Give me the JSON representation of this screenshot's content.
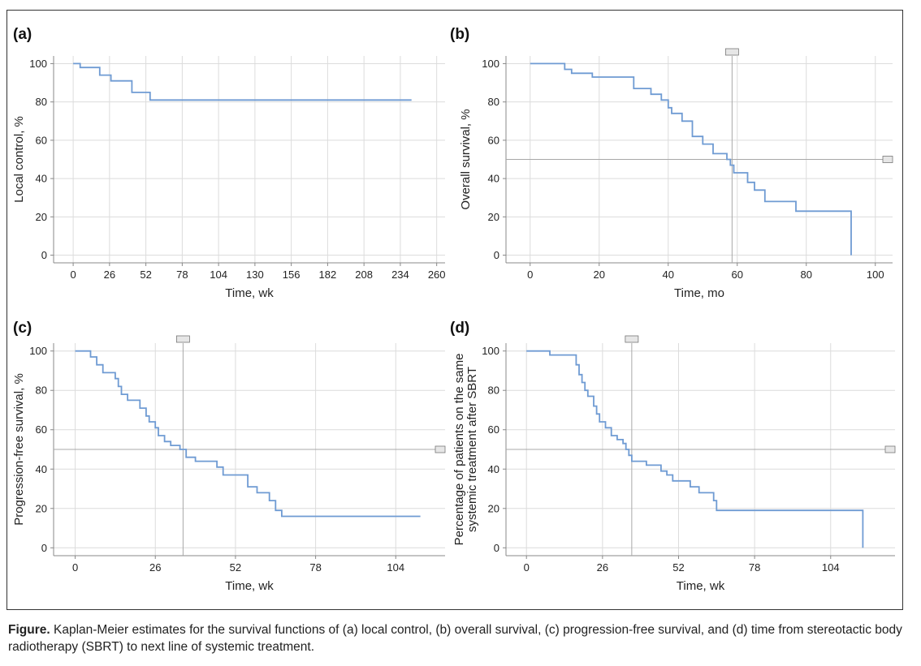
{
  "caption": {
    "label": "Figure.",
    "text": "Kaplan-Meier estimates for the survival functions of (a) local control, (b) overall survival, (c) progression-free survival, and (d) time from stereotactic body radiotherapy (SBRT) to next line of systemic treatment."
  },
  "chart_data": [
    {
      "panel": "(a)",
      "type": "line",
      "step": true,
      "xlabel": "Time, wk",
      "ylabel": [
        "Local control, %"
      ],
      "xlim": [
        -14,
        266
      ],
      "ylim": [
        -4,
        104
      ],
      "xticks": [
        0,
        26,
        52,
        78,
        104,
        130,
        156,
        182,
        208,
        234,
        260
      ],
      "yticks": [
        0,
        20,
        40,
        60,
        80,
        100
      ],
      "grid": true,
      "median_line": null,
      "points": [
        [
          0,
          100
        ],
        [
          5,
          100
        ],
        [
          5,
          98
        ],
        [
          19,
          98
        ],
        [
          19,
          94
        ],
        [
          27,
          94
        ],
        [
          27,
          91
        ],
        [
          42,
          91
        ],
        [
          42,
          85
        ],
        [
          55,
          85
        ],
        [
          55,
          81
        ],
        [
          242,
          81
        ]
      ]
    },
    {
      "panel": "(b)",
      "type": "line",
      "step": true,
      "xlabel": "Time, mo",
      "ylabel": [
        "Overall survival, %"
      ],
      "xlim": [
        -7,
        105
      ],
      "ylim": [
        -4,
        104
      ],
      "xticks": [
        0,
        20,
        40,
        60,
        80,
        100
      ],
      "yticks": [
        0,
        20,
        40,
        60,
        80,
        100
      ],
      "grid": true,
      "median_line": {
        "x": 58.5,
        "y": 50
      },
      "points": [
        [
          0,
          100
        ],
        [
          10,
          100
        ],
        [
          10,
          97
        ],
        [
          12,
          97
        ],
        [
          12,
          95
        ],
        [
          18,
          95
        ],
        [
          18,
          93
        ],
        [
          30,
          93
        ],
        [
          30,
          87
        ],
        [
          35,
          87
        ],
        [
          35,
          84
        ],
        [
          38,
          84
        ],
        [
          38,
          81
        ],
        [
          40,
          81
        ],
        [
          40,
          77
        ],
        [
          41,
          77
        ],
        [
          41,
          74
        ],
        [
          44,
          74
        ],
        [
          44,
          70
        ],
        [
          47,
          70
        ],
        [
          47,
          62
        ],
        [
          50,
          62
        ],
        [
          50,
          58
        ],
        [
          53,
          58
        ],
        [
          53,
          53
        ],
        [
          57,
          53
        ],
        [
          57,
          50
        ],
        [
          58,
          50
        ],
        [
          58,
          47
        ],
        [
          59,
          47
        ],
        [
          59,
          43
        ],
        [
          63,
          43
        ],
        [
          63,
          38
        ],
        [
          65,
          38
        ],
        [
          65,
          34
        ],
        [
          68,
          34
        ],
        [
          68,
          28
        ],
        [
          77,
          28
        ],
        [
          77,
          23
        ],
        [
          93,
          23
        ],
        [
          93,
          0
        ]
      ]
    },
    {
      "panel": "(c)",
      "type": "line",
      "step": true,
      "xlabel": "Time, wk",
      "ylabel": [
        "Progression-free survival, %"
      ],
      "xlim": [
        -7,
        120
      ],
      "ylim": [
        -4,
        104
      ],
      "xticks": [
        0,
        26,
        52,
        78,
        104
      ],
      "yticks": [
        0,
        20,
        40,
        60,
        80,
        100
      ],
      "grid": true,
      "median_line": {
        "x": 35,
        "y": 50
      },
      "points": [
        [
          0,
          100
        ],
        [
          5,
          100
        ],
        [
          5,
          97
        ],
        [
          7,
          97
        ],
        [
          7,
          93
        ],
        [
          9,
          93
        ],
        [
          9,
          89
        ],
        [
          13,
          89
        ],
        [
          13,
          86
        ],
        [
          14,
          86
        ],
        [
          14,
          82
        ],
        [
          15,
          82
        ],
        [
          15,
          78
        ],
        [
          17,
          78
        ],
        [
          17,
          75
        ],
        [
          21,
          75
        ],
        [
          21,
          71
        ],
        [
          23,
          71
        ],
        [
          23,
          67
        ],
        [
          24,
          67
        ],
        [
          24,
          64
        ],
        [
          26,
          64
        ],
        [
          26,
          61
        ],
        [
          27,
          61
        ],
        [
          27,
          57
        ],
        [
          29,
          57
        ],
        [
          29,
          54
        ],
        [
          31,
          54
        ],
        [
          31,
          52
        ],
        [
          34,
          52
        ],
        [
          34,
          50
        ],
        [
          36,
          50
        ],
        [
          36,
          46
        ],
        [
          39,
          46
        ],
        [
          39,
          44
        ],
        [
          46,
          44
        ],
        [
          46,
          41
        ],
        [
          48,
          41
        ],
        [
          48,
          37
        ],
        [
          56,
          37
        ],
        [
          56,
          31
        ],
        [
          59,
          31
        ],
        [
          59,
          28
        ],
        [
          63,
          28
        ],
        [
          63,
          24
        ],
        [
          65,
          24
        ],
        [
          65,
          19
        ],
        [
          67,
          19
        ],
        [
          67,
          16
        ],
        [
          112,
          16
        ]
      ]
    },
    {
      "panel": "(d)",
      "type": "line",
      "step": true,
      "xlabel": "Time, wk",
      "ylabel": [
        "Percentage of patients on the same",
        "systemic treatment after SBRT"
      ],
      "xlim": [
        -7,
        126
      ],
      "ylim": [
        -4,
        104
      ],
      "xticks": [
        0,
        26,
        52,
        78,
        104
      ],
      "yticks": [
        0,
        20,
        40,
        60,
        80,
        100
      ],
      "grid": true,
      "median_line": {
        "x": 36,
        "y": 50
      },
      "points": [
        [
          0,
          100
        ],
        [
          8,
          100
        ],
        [
          8,
          98
        ],
        [
          17,
          98
        ],
        [
          17,
          93
        ],
        [
          18,
          93
        ],
        [
          18,
          88
        ],
        [
          19,
          88
        ],
        [
          19,
          84
        ],
        [
          20,
          84
        ],
        [
          20,
          80
        ],
        [
          21,
          80
        ],
        [
          21,
          77
        ],
        [
          23,
          77
        ],
        [
          23,
          72
        ],
        [
          24,
          72
        ],
        [
          24,
          68
        ],
        [
          25,
          68
        ],
        [
          25,
          64
        ],
        [
          27,
          64
        ],
        [
          27,
          61
        ],
        [
          29,
          61
        ],
        [
          29,
          57
        ],
        [
          31,
          57
        ],
        [
          31,
          55
        ],
        [
          33,
          55
        ],
        [
          33,
          53
        ],
        [
          34,
          53
        ],
        [
          34,
          50
        ],
        [
          35,
          50
        ],
        [
          35,
          47
        ],
        [
          36,
          47
        ],
        [
          36,
          44
        ],
        [
          41,
          44
        ],
        [
          41,
          42
        ],
        [
          46,
          42
        ],
        [
          46,
          39
        ],
        [
          48,
          39
        ],
        [
          48,
          37
        ],
        [
          50,
          37
        ],
        [
          50,
          34
        ],
        [
          56,
          34
        ],
        [
          56,
          31
        ],
        [
          59,
          31
        ],
        [
          59,
          28
        ],
        [
          64,
          28
        ],
        [
          64,
          24
        ],
        [
          65,
          24
        ],
        [
          65,
          19
        ],
        [
          115,
          19
        ],
        [
          115,
          0
        ]
      ]
    }
  ]
}
